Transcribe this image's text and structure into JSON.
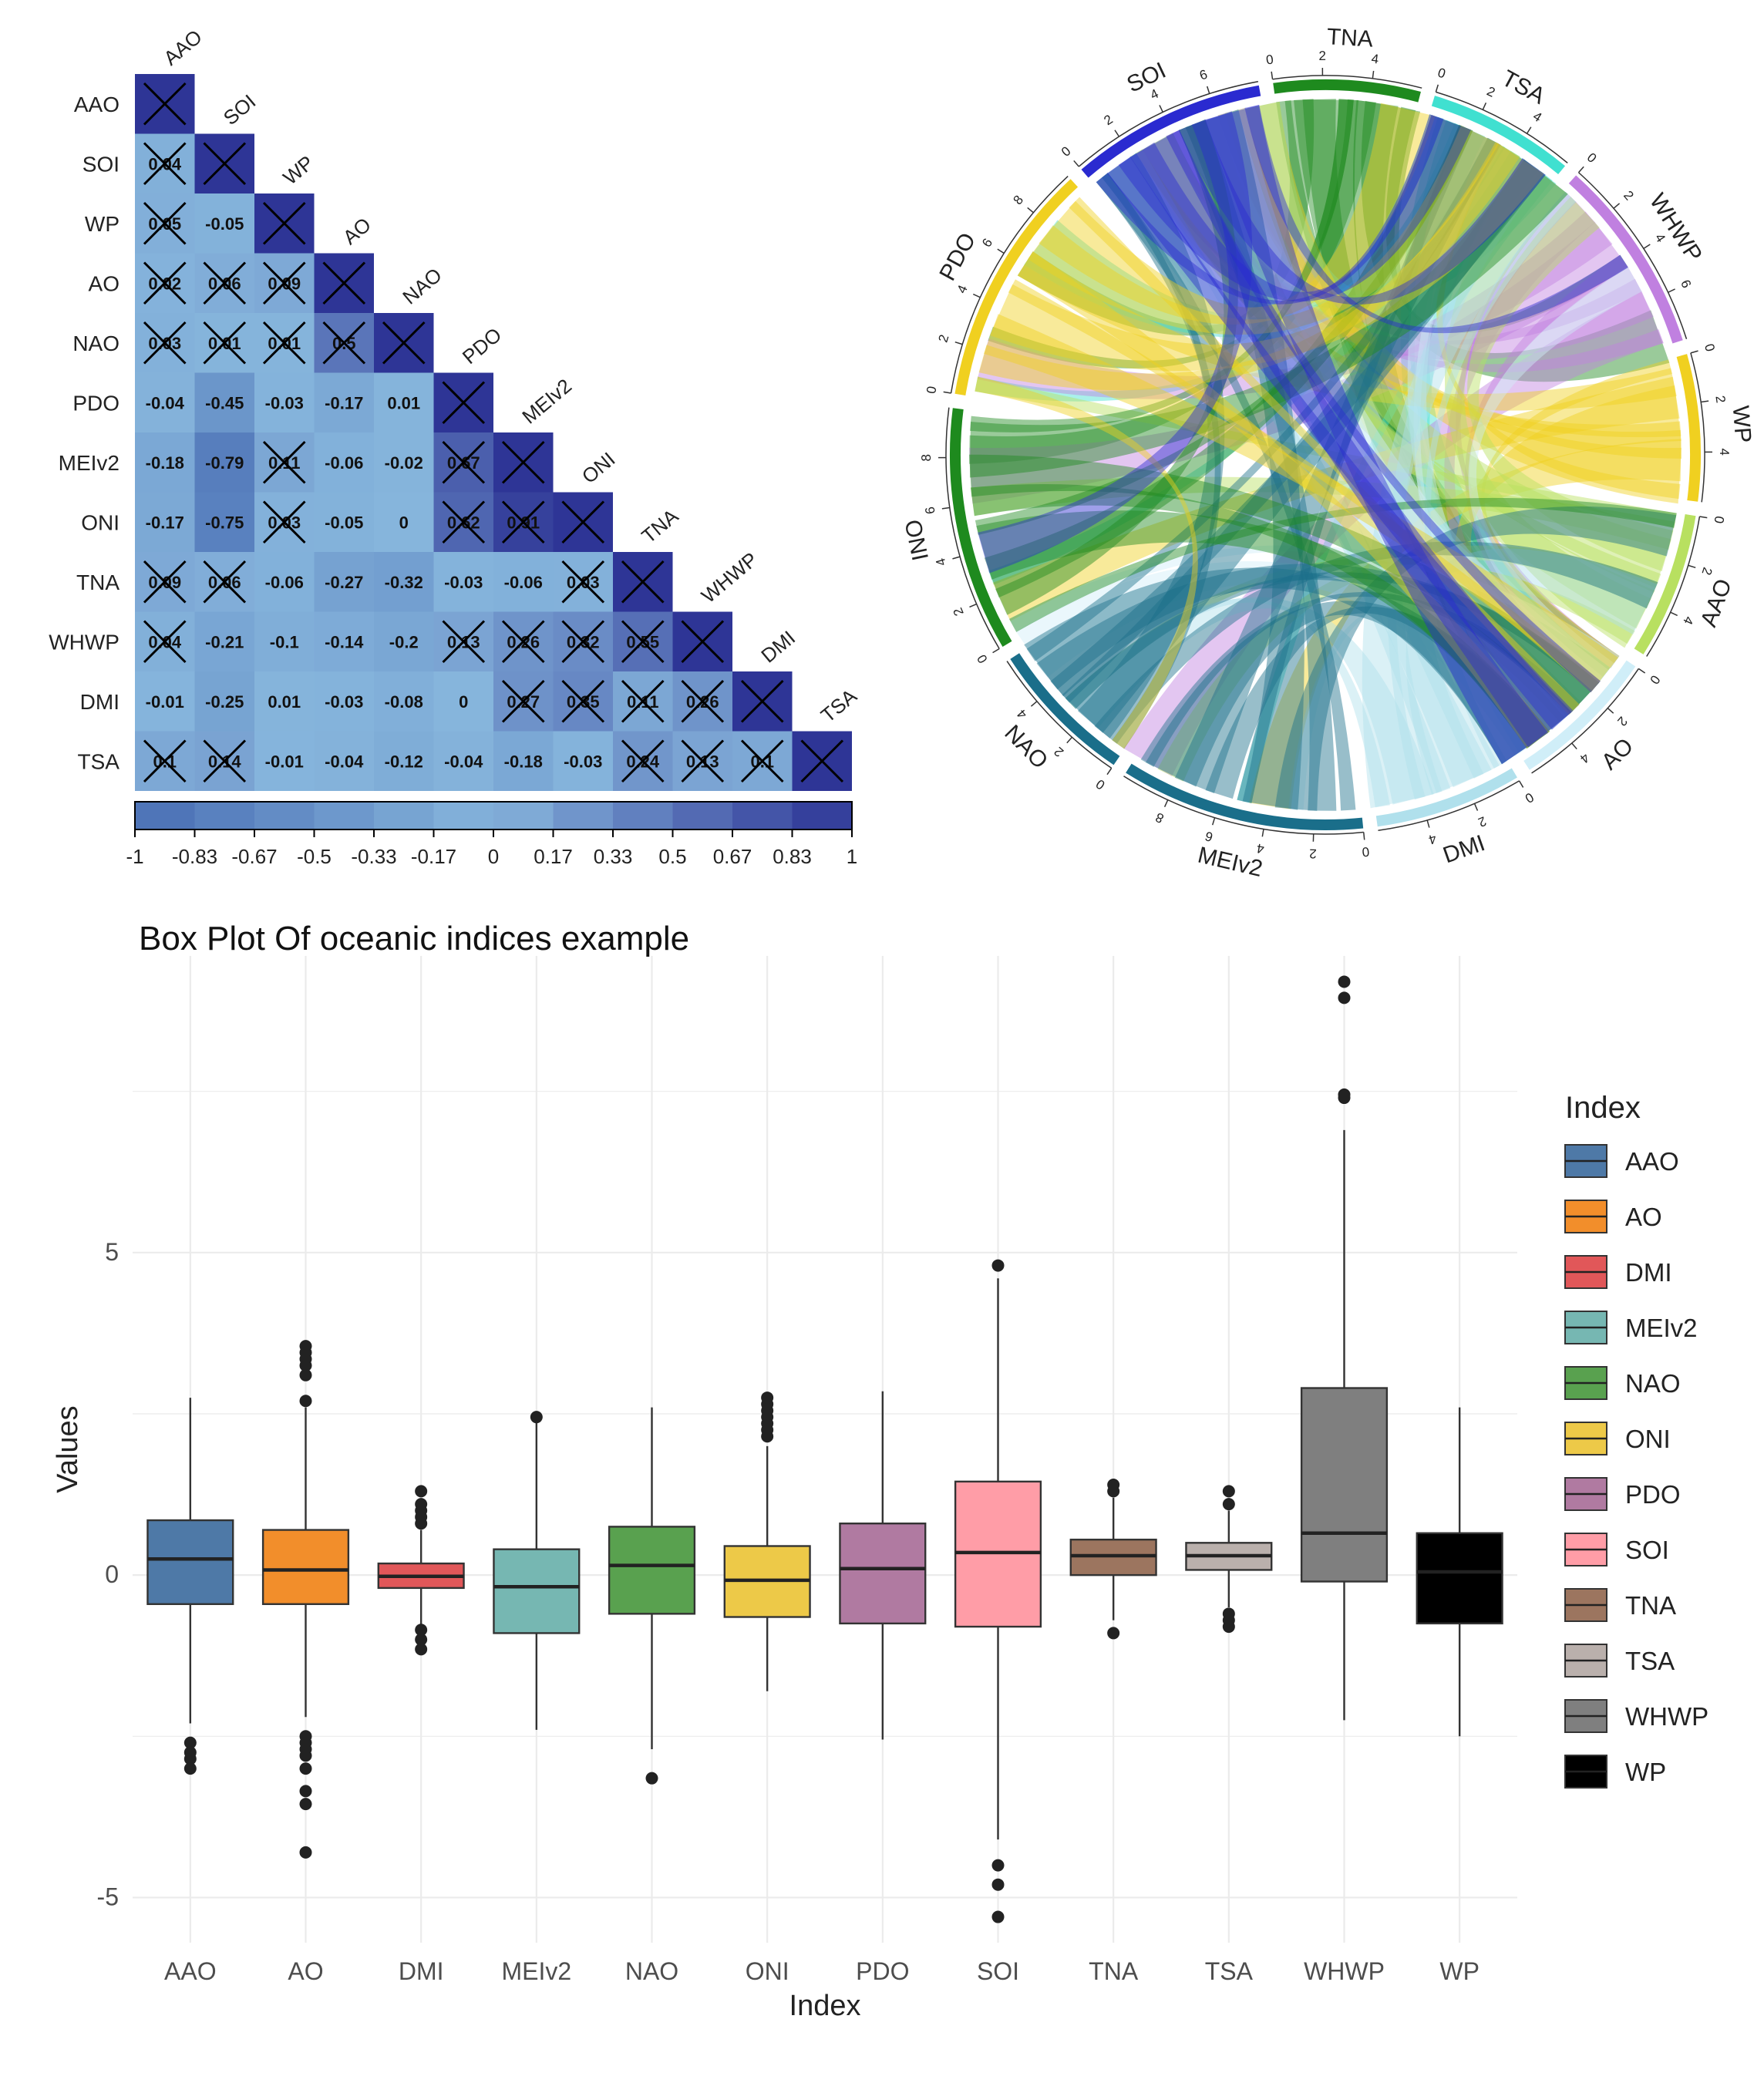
{
  "chart_data": [
    {
      "type": "heatmap",
      "title": "",
      "labels": [
        "AAO",
        "SOI",
        "WP",
        "AO",
        "NAO",
        "PDO",
        "MEIv2",
        "ONI",
        "TNA",
        "WHWP",
        "DMI",
        "TSA"
      ],
      "lower_triangle_values": [
        [],
        [
          "0.04"
        ],
        [
          "0.05",
          "-0.05"
        ],
        [
          "0.02",
          "0.06",
          "0.09"
        ],
        [
          "0.03",
          "0.01",
          "0.01",
          "0.5"
        ],
        [
          "-0.04",
          "-0.45",
          "-0.03",
          "-0.17",
          "0.01"
        ],
        [
          "-0.18",
          "-0.79",
          "0.11",
          "-0.06",
          "-0.02",
          "0.67"
        ],
        [
          "-0.17",
          "-0.75",
          "0.03",
          "-0.05",
          "0",
          "0.62",
          "0.91"
        ],
        [
          "0.09",
          "0.06",
          "-0.06",
          "-0.27",
          "-0.32",
          "-0.03",
          "-0.06",
          "0.03"
        ],
        [
          "0.04",
          "-0.21",
          "-0.1",
          "-0.14",
          "-0.2",
          "0.13",
          "0.26",
          "0.32",
          "0.55"
        ],
        [
          "-0.01",
          "-0.25",
          "0.01",
          "-0.03",
          "-0.08",
          "0",
          "0.27",
          "0.35",
          "0.11",
          "0.26"
        ],
        [
          "0.1",
          "0.14",
          "-0.01",
          "-0.04",
          "-0.12",
          "-0.04",
          "-0.18",
          "-0.03",
          "0.24",
          "0.13",
          "0.1"
        ]
      ],
      "insignificant_crossed": [
        [],
        [
          true
        ],
        [
          true,
          false
        ],
        [
          true,
          true,
          true
        ],
        [
          true,
          true,
          true,
          true
        ],
        [
          false,
          false,
          false,
          false,
          false
        ],
        [
          false,
          false,
          true,
          false,
          false,
          true
        ],
        [
          false,
          false,
          true,
          false,
          false,
          true,
          true
        ],
        [
          true,
          true,
          false,
          false,
          false,
          false,
          false,
          true
        ],
        [
          true,
          false,
          false,
          false,
          false,
          true,
          true,
          true,
          true
        ],
        [
          false,
          false,
          false,
          false,
          false,
          false,
          true,
          true,
          true,
          true
        ],
        [
          true,
          true,
          false,
          false,
          false,
          false,
          false,
          false,
          true,
          true,
          true
        ]
      ],
      "colorbar_ticks": [
        "-1",
        "-0.83",
        "-0.67",
        "-0.5",
        "-0.33",
        "-0.17",
        "0",
        "0.17",
        "0.33",
        "0.5",
        "0.67",
        "0.83",
        "1"
      ],
      "colors": {
        "negative": "#4a6fb5",
        "zero": "#86b5dc",
        "positive": "#2e3596",
        "cross": "#000000"
      }
    },
    {
      "type": "chord",
      "title": "",
      "sectors": [
        {
          "name": "TNA",
          "color": "#1e8a1e",
          "ticks": [
            "0",
            "2",
            "4"
          ]
        },
        {
          "name": "TSA",
          "color": "#40e0d0",
          "ticks": [
            "0",
            "2",
            "4"
          ]
        },
        {
          "name": "WHWP",
          "color": "#c080e0",
          "ticks": [
            "0",
            "2",
            "4",
            "6"
          ]
        },
        {
          "name": "WP",
          "color": "#f0d020",
          "ticks": [
            "0",
            "2",
            "4"
          ]
        },
        {
          "name": "AAO",
          "color": "#b8e060",
          "ticks": [
            "0",
            "2",
            "4"
          ]
        },
        {
          "name": "AO",
          "color": "#d0eef8",
          "ticks": [
            "0",
            "2",
            "4"
          ]
        },
        {
          "name": "DMI",
          "color": "#b0e0ec",
          "ticks": [
            "0",
            "2",
            "4"
          ]
        },
        {
          "name": "MEIv2",
          "color": "#1a6e8a",
          "ticks": [
            "0",
            "2",
            "4",
            "6",
            "8"
          ]
        },
        {
          "name": "NAO",
          "color": "#1a6e8a",
          "ticks": [
            "0",
            "2",
            "4"
          ]
        },
        {
          "name": "ONI",
          "color": "#1e8a1e",
          "ticks": [
            "0",
            "2",
            "4",
            "6",
            "8"
          ]
        },
        {
          "name": "PDO",
          "color": "#f0d020",
          "ticks": [
            "0",
            "2",
            "4",
            "6",
            "8"
          ]
        },
        {
          "name": "SOI",
          "color": "#2a2ad0",
          "ticks": [
            "0",
            "2",
            "4",
            "6"
          ]
        }
      ]
    },
    {
      "type": "box",
      "title": "Box Plot Of oceanic indices example",
      "xlabel": "Index",
      "ylabel": "Values",
      "ylim": [
        -5.7,
        9.6
      ],
      "yticks": [
        -5,
        0,
        5
      ],
      "ytick_labels": [
        "-5",
        "0",
        "5"
      ],
      "legend_title": "Index",
      "legend_position": "right",
      "categories": [
        "AAO",
        "AO",
        "DMI",
        "MEIv2",
        "NAO",
        "ONI",
        "PDO",
        "SOI",
        "TNA",
        "TSA",
        "WHWP",
        "WP"
      ],
      "boxes": [
        {
          "name": "AAO",
          "color": "#4e79a7",
          "whisker_low": -2.3,
          "q1": -0.45,
          "median": 0.25,
          "q3": 0.85,
          "whisker_high": 2.75,
          "outliers": [
            -2.6,
            -2.75,
            -2.85,
            -3.0
          ]
        },
        {
          "name": "AO",
          "color": "#f28e2b",
          "whisker_low": -2.2,
          "q1": -0.45,
          "median": 0.08,
          "q3": 0.7,
          "whisker_high": 2.6,
          "outliers": [
            -2.5,
            -2.6,
            -2.7,
            -2.8,
            -3.0,
            -3.35,
            -3.55,
            -4.3,
            2.7,
            3.1,
            3.25,
            3.35,
            3.45,
            3.55
          ]
        },
        {
          "name": "DMI",
          "color": "#e15759",
          "whisker_low": -0.8,
          "q1": -0.2,
          "median": -0.02,
          "q3": 0.18,
          "whisker_high": 0.7,
          "outliers": [
            -0.85,
            -1.0,
            -1.15,
            0.8,
            0.9,
            1.0,
            1.1,
            1.3
          ]
        },
        {
          "name": "MEIv2",
          "color": "#76b7b2",
          "whisker_low": -2.4,
          "q1": -0.9,
          "median": -0.18,
          "q3": 0.4,
          "whisker_high": 2.4,
          "outliers": [
            2.45
          ]
        },
        {
          "name": "NAO",
          "color": "#59a14f",
          "whisker_low": -2.7,
          "q1": -0.6,
          "median": 0.15,
          "q3": 0.75,
          "whisker_high": 2.6,
          "outliers": [
            -3.15
          ]
        },
        {
          "name": "ONI",
          "color": "#edc948",
          "whisker_low": -1.8,
          "q1": -0.65,
          "median": -0.08,
          "q3": 0.45,
          "whisker_high": 2.0,
          "outliers": [
            2.15,
            2.25,
            2.35,
            2.45,
            2.55,
            2.65,
            2.75
          ]
        },
        {
          "name": "PDO",
          "color": "#b07aa1",
          "whisker_low": -2.55,
          "q1": -0.75,
          "median": 0.1,
          "q3": 0.8,
          "whisker_high": 2.85,
          "outliers": []
        },
        {
          "name": "SOI",
          "color": "#ff9da7",
          "whisker_low": -4.1,
          "q1": -0.8,
          "median": 0.35,
          "q3": 1.45,
          "whisker_high": 4.6,
          "outliers": [
            4.8,
            -4.5,
            -4.8,
            -5.3
          ]
        },
        {
          "name": "TNA",
          "color": "#9c755f",
          "whisker_low": -0.7,
          "q1": 0.0,
          "median": 0.3,
          "q3": 0.55,
          "whisker_high": 1.2,
          "outliers": [
            -0.9,
            1.3,
            1.4
          ]
        },
        {
          "name": "TSA",
          "color": "#bab0ac",
          "whisker_low": -0.5,
          "q1": 0.08,
          "median": 0.3,
          "q3": 0.5,
          "whisker_high": 1.0,
          "outliers": [
            -0.6,
            -0.7,
            -0.8,
            1.1,
            1.3
          ]
        },
        {
          "name": "WHWP",
          "color": "#7f7f7f",
          "whisker_low": -2.25,
          "q1": -0.1,
          "median": 0.65,
          "q3": 2.9,
          "whisker_high": 6.9,
          "outliers": [
            7.4,
            7.45,
            8.95,
            9.2
          ]
        },
        {
          "name": "WP",
          "color": "#000000",
          "whisker_low": -2.5,
          "q1": -0.75,
          "median": 0.05,
          "q3": 0.65,
          "whisker_high": 2.6,
          "outliers": []
        }
      ]
    }
  ]
}
